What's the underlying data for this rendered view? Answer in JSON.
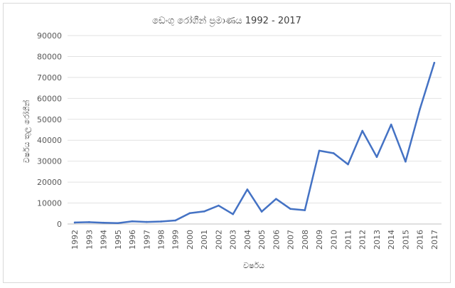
{
  "chart_data": {
    "type": "line",
    "title": "ඩෙංගු රෝගීන් ප්‍රමාණය 1992 - 2017",
    "xlabel": "වර්ෂය",
    "ylabel": "වර්ෂය තුල රෝගීන්",
    "ylim": [
      0,
      90000
    ],
    "yticks": [
      "0",
      "10000",
      "20000",
      "30000",
      "40000",
      "50000",
      "60000",
      "70000",
      "80000",
      "90000"
    ],
    "grid": true,
    "legend": "none",
    "color": "#4472C4",
    "categories": [
      "1992",
      "1993",
      "1994",
      "1995",
      "1996",
      "1997",
      "1998",
      "1999",
      "2000",
      "2001",
      "2002",
      "2003",
      "2004",
      "2005",
      "2006",
      "2007",
      "2008",
      "2009",
      "2010",
      "2011",
      "2012",
      "2013",
      "2014",
      "2015",
      "2016",
      "2017"
    ],
    "values": [
      700,
      900,
      600,
      450,
      1300,
      1000,
      1200,
      1700,
      5200,
      6000,
      8800,
      4700,
      16500,
      5900,
      12000,
      7200,
      6600,
      35000,
      33800,
      28500,
      44500,
      32000,
      47500,
      29800,
      55000,
      77000
    ]
  }
}
